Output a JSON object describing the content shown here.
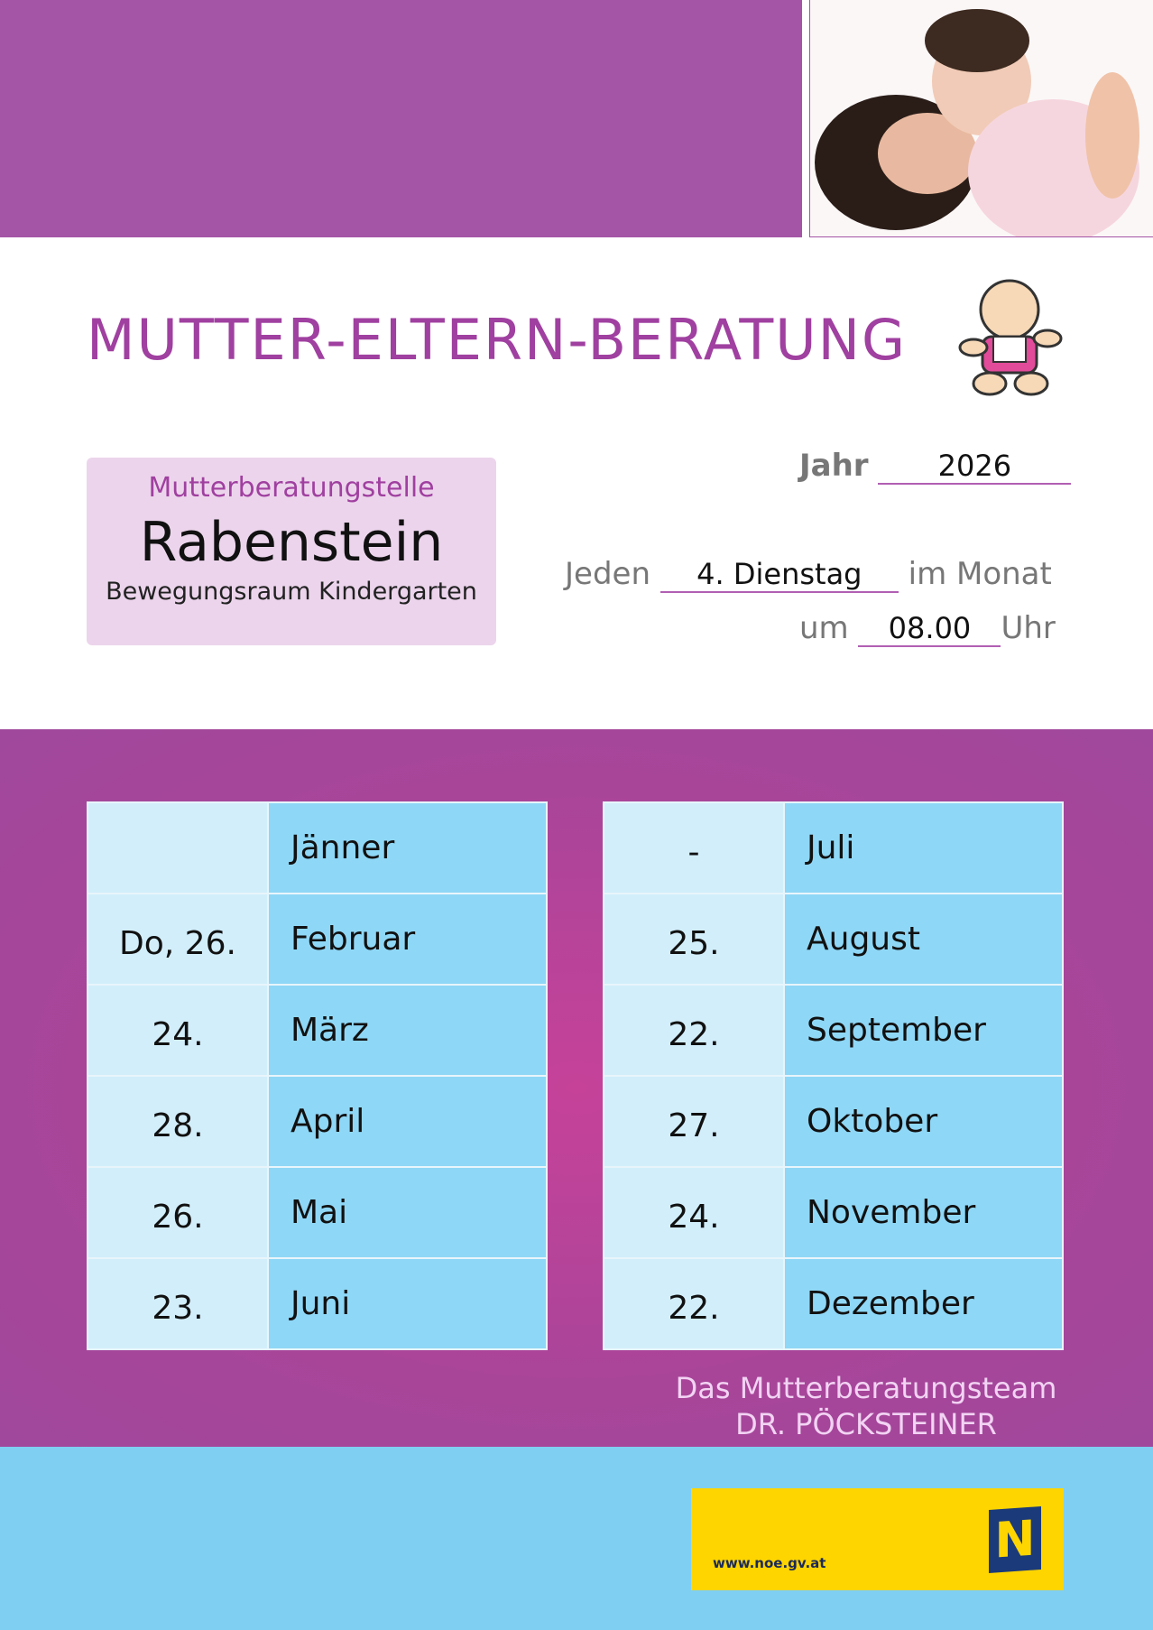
{
  "header": {
    "title": "MUTTER-ELTERN-BERATUNG"
  },
  "location": {
    "label": "Mutterberatungstelle",
    "name": "Rabenstein",
    "venue": "Bewegungsraum Kindergarten"
  },
  "schedule": {
    "year_label": "Jahr",
    "year": "2026",
    "every_label": "Jeden",
    "weekday": "4. Dienstag",
    "month_suffix": "im Monat",
    "time_prefix": "um",
    "time": "08.00",
    "time_suffix": "Uhr"
  },
  "tables": [
    {
      "rows": [
        [
          null,
          "Jänner"
        ],
        [
          "Do, 26.",
          "Februar"
        ],
        [
          "24.",
          "März"
        ],
        [
          "28.",
          "April"
        ],
        [
          "26.",
          "Mai"
        ],
        [
          "23.",
          "Juni"
        ]
      ]
    },
    {
      "rows": [
        [
          "-",
          "Juli"
        ],
        [
          "25.",
          "August"
        ],
        [
          "22.",
          "September"
        ],
        [
          "27.",
          "Oktober"
        ],
        [
          "24.",
          "November"
        ],
        [
          "22.",
          "Dezember"
        ]
      ]
    }
  ],
  "footer": {
    "team": "Das Mutterberatungsteam",
    "doctor": "DR. PÖCKSTEINER",
    "url": "www.noe.gv.at",
    "logo": "N"
  }
}
